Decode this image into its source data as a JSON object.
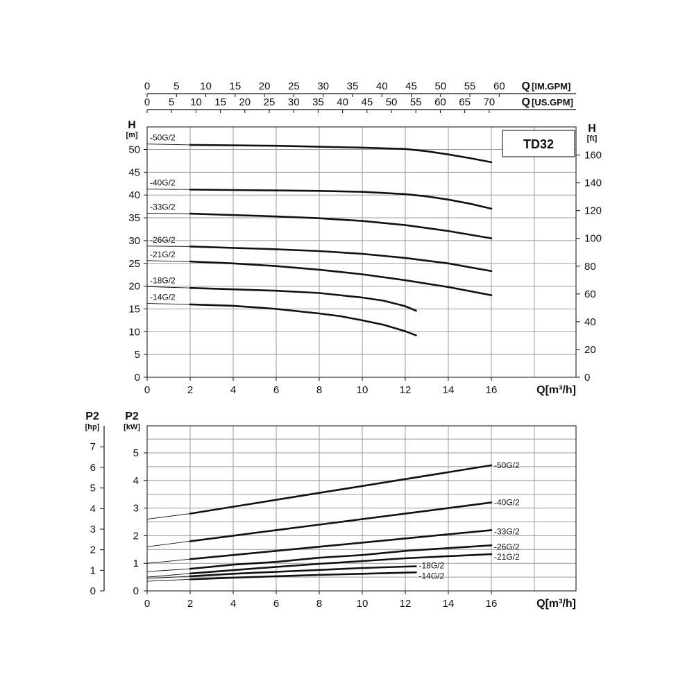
{
  "chart_data": [
    {
      "type": "line",
      "title": "TD32",
      "xlabel": "Q[m³/h]",
      "ylabel": "H",
      "ylabel_unit": "[m]",
      "ylabel_right": "H",
      "ylabel_right_unit": "[ft]",
      "xlim": [
        0,
        16
      ],
      "ylim": [
        0,
        53
      ],
      "x_ticks": [
        "0",
        "2",
        "4",
        "6",
        "8",
        "10",
        "12",
        "14",
        "16"
      ],
      "y_ticks": [
        "0",
        "5",
        "10",
        "15",
        "20",
        "25",
        "30",
        "35",
        "40",
        "45",
        "50"
      ],
      "y_right_ticks": [
        "0",
        "20",
        "40",
        "60",
        "80",
        "100",
        "120",
        "140",
        "160"
      ],
      "top_axis_im": {
        "label": "Q",
        "unit": "[IM.GPM]",
        "ticks": [
          "0",
          "5",
          "10",
          "15",
          "20",
          "25",
          "30",
          "35",
          "40",
          "45",
          "50",
          "55",
          "60"
        ],
        "values": [
          0,
          5,
          10,
          15,
          20,
          25,
          30,
          35,
          40,
          45,
          50,
          55,
          60
        ]
      },
      "top_axis_us": {
        "label": "Q",
        "unit": "[US.GPM]",
        "ticks": [
          "0",
          "5",
          "10",
          "15",
          "20",
          "25",
          "30",
          "35",
          "40",
          "45",
          "50",
          "55",
          "60",
          "65",
          "70"
        ],
        "values": [
          0,
          5,
          10,
          15,
          20,
          25,
          30,
          35,
          40,
          45,
          50,
          55,
          60,
          65,
          70
        ]
      },
      "grid": true,
      "series": [
        {
          "name": "-50G/2",
          "x": [
            0,
            2,
            4,
            6,
            8,
            10,
            12,
            13,
            14,
            15,
            16
          ],
          "y": [
            51.2,
            51.0,
            50.9,
            50.8,
            50.6,
            50.4,
            50.1,
            49.6,
            48.9,
            48.1,
            47.2
          ]
        },
        {
          "name": "-40G/2",
          "x": [
            0,
            2,
            4,
            6,
            8,
            10,
            12,
            13,
            14,
            15,
            16
          ],
          "y": [
            41.3,
            41.2,
            41.1,
            41.0,
            40.9,
            40.7,
            40.2,
            39.7,
            39.0,
            38.1,
            37.0
          ]
        },
        {
          "name": "-33G/2",
          "x": [
            0,
            2,
            4,
            6,
            8,
            10,
            12,
            14,
            16
          ],
          "y": [
            36.0,
            35.9,
            35.6,
            35.3,
            34.9,
            34.3,
            33.4,
            32.1,
            30.5
          ]
        },
        {
          "name": "-26G/2",
          "x": [
            0,
            2,
            4,
            6,
            8,
            10,
            12,
            14,
            16
          ],
          "y": [
            28.8,
            28.7,
            28.4,
            28.1,
            27.7,
            27.1,
            26.2,
            25.0,
            23.3
          ]
        },
        {
          "name": "-21G/2",
          "x": [
            0,
            2,
            4,
            6,
            8,
            10,
            12,
            14,
            16
          ],
          "y": [
            25.6,
            25.4,
            25.0,
            24.4,
            23.6,
            22.6,
            21.3,
            19.8,
            18.0
          ]
        },
        {
          "name": "-18G/2",
          "x": [
            0,
            2,
            4,
            6,
            8,
            10,
            11,
            12,
            12.5
          ],
          "y": [
            19.9,
            19.6,
            19.3,
            19.0,
            18.5,
            17.5,
            16.8,
            15.6,
            14.6
          ]
        },
        {
          "name": "-14G/2",
          "x": [
            0,
            2,
            4,
            6,
            8,
            9,
            10,
            11,
            12,
            12.5
          ],
          "y": [
            16.2,
            16.0,
            15.7,
            15.0,
            14.0,
            13.4,
            12.5,
            11.5,
            10.1,
            9.2
          ]
        }
      ]
    },
    {
      "type": "line",
      "xlabel": "Q[m³/h]",
      "ylabel": "P2",
      "ylabel_unit": "[kW]",
      "ylabel_left": "P2",
      "ylabel_left_unit": "[hp]",
      "xlim": [
        0,
        16
      ],
      "ylim": [
        0,
        5.6
      ],
      "x_ticks": [
        "0",
        "2",
        "4",
        "6",
        "8",
        "10",
        "12",
        "14",
        "16"
      ],
      "y_ticks": [
        "0",
        "1",
        "2",
        "3",
        "4",
        "5"
      ],
      "hp_ticks": [
        "0",
        "1",
        "2",
        "3",
        "4",
        "5",
        "6",
        "7"
      ],
      "grid": true,
      "series": [
        {
          "name": "-50G/2",
          "x": [
            0,
            2,
            4,
            6,
            8,
            10,
            12,
            14,
            16
          ],
          "y": [
            2.6,
            2.8,
            3.05,
            3.3,
            3.55,
            3.8,
            4.05,
            4.3,
            4.55
          ]
        },
        {
          "name": "-40G/2",
          "x": [
            0,
            2,
            4,
            6,
            8,
            10,
            12,
            14,
            16
          ],
          "y": [
            1.6,
            1.8,
            2.0,
            2.2,
            2.4,
            2.6,
            2.8,
            3.0,
            3.2
          ]
        },
        {
          "name": "-33G/2",
          "x": [
            0,
            2,
            4,
            6,
            8,
            10,
            12,
            14,
            16
          ],
          "y": [
            1.0,
            1.15,
            1.3,
            1.45,
            1.6,
            1.75,
            1.9,
            2.05,
            2.2
          ]
        },
        {
          "name": "-26G/2",
          "x": [
            0,
            2,
            4,
            6,
            8,
            10,
            12,
            14,
            16
          ],
          "y": [
            0.7,
            0.8,
            0.95,
            1.05,
            1.2,
            1.3,
            1.45,
            1.55,
            1.65
          ]
        },
        {
          "name": "-21G/2",
          "x": [
            0,
            2,
            4,
            6,
            8,
            10,
            12,
            14,
            16
          ],
          "y": [
            0.5,
            0.63,
            0.75,
            0.87,
            0.98,
            1.08,
            1.18,
            1.26,
            1.33
          ]
        },
        {
          "name": "-18G/2",
          "x": [
            0,
            2,
            4,
            6,
            8,
            10,
            12,
            12.5
          ],
          "y": [
            0.45,
            0.53,
            0.62,
            0.69,
            0.76,
            0.83,
            0.88,
            0.89
          ]
        },
        {
          "name": "-14G/2",
          "x": [
            0,
            2,
            4,
            6,
            8,
            10,
            12,
            12.5
          ],
          "y": [
            0.35,
            0.42,
            0.48,
            0.53,
            0.58,
            0.62,
            0.66,
            0.67
          ]
        }
      ]
    }
  ]
}
